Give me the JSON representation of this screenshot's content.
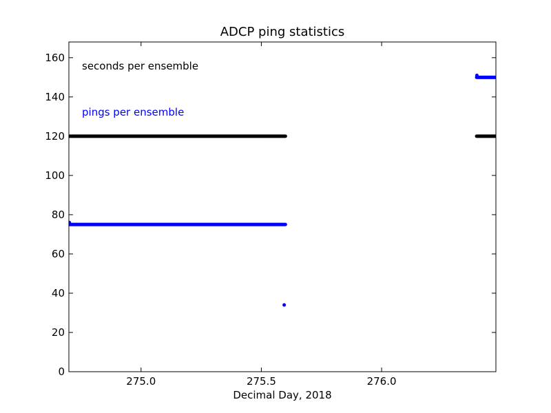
{
  "chart_data": {
    "type": "scatter",
    "title": "ADCP  ping statistics",
    "xlabel": "Decimal Day, 2018",
    "ylabel": "",
    "xlim": [
      274.7,
      276.475
    ],
    "ylim": [
      0,
      168
    ],
    "xticks": [
      275.0,
      275.5,
      276.0
    ],
    "xtick_labels": [
      "275.0",
      "275.5",
      "276.0"
    ],
    "yticks": [
      0,
      20,
      40,
      60,
      80,
      100,
      120,
      140,
      160
    ],
    "ytick_labels": [
      "0",
      "20",
      "40",
      "60",
      "80",
      "100",
      "120",
      "140",
      "160"
    ],
    "grid": false,
    "annotations": [
      {
        "text": "seconds per ensemble",
        "color": "#000000"
      },
      {
        "text": "pings per ensemble",
        "color": "#0000ff"
      }
    ],
    "series": [
      {
        "color": "#000000",
        "segments": [
          {
            "x_start": 274.7,
            "x_end": 275.6,
            "y": 120
          },
          {
            "x_start": 276.395,
            "x_end": 276.475,
            "y": 120
          }
        ],
        "points": []
      },
      {
        "color": "#0000ff",
        "segments": [
          {
            "x_start": 274.7,
            "x_end": 275.6,
            "y": 75
          },
          {
            "x_start": 276.395,
            "x_end": 276.475,
            "y": 150
          }
        ],
        "points": [
          {
            "x": 274.702,
            "y": 76
          },
          {
            "x": 275.595,
            "y": 34
          },
          {
            "x": 276.396,
            "y": 151
          }
        ]
      }
    ]
  }
}
